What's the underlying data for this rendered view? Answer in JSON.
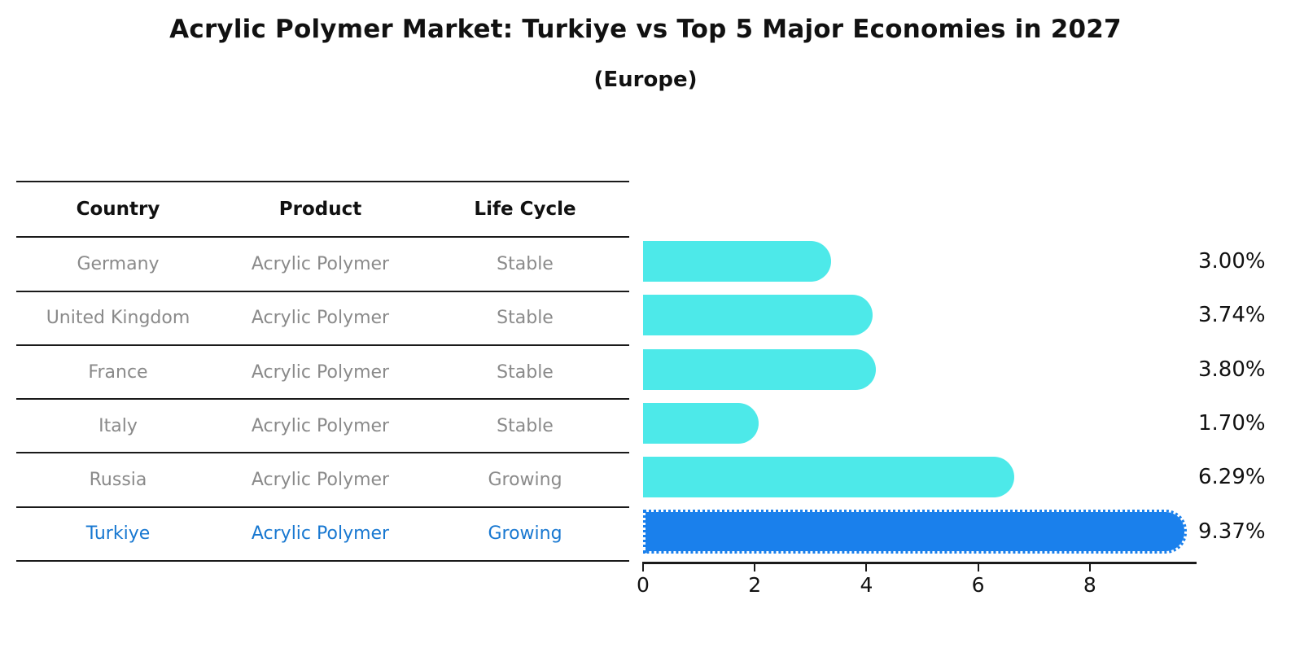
{
  "title": "Acrylic Polymer Market: Turkiye vs Top 5 Major Economies in 2027",
  "subtitle": "(Europe)",
  "table": {
    "headers": [
      "Country",
      "Product",
      "Life Cycle"
    ],
    "rows": [
      {
        "country": "Germany",
        "product": "Acrylic Polymer",
        "life_cycle": "Stable",
        "highlight": false
      },
      {
        "country": "United Kingdom",
        "product": "Acrylic Polymer",
        "life_cycle": "Stable",
        "highlight": false
      },
      {
        "country": "France",
        "product": "Acrylic Polymer",
        "life_cycle": "Stable",
        "highlight": false
      },
      {
        "country": "Italy",
        "product": "Acrylic Polymer",
        "life_cycle": "Stable",
        "highlight": false
      },
      {
        "country": "Russia",
        "product": "Acrylic Polymer",
        "life_cycle": "Growing",
        "highlight": false
      },
      {
        "country": "Turkiye",
        "product": "Acrylic Polymer",
        "life_cycle": "Growing",
        "highlight": true
      }
    ]
  },
  "chart_data": {
    "type": "bar",
    "orientation": "horizontal",
    "title": "Acrylic Polymer Market: Turkiye vs Top 5 Major Economies in 2027",
    "subtitle": "(Europe)",
    "categories": [
      "Germany",
      "United Kingdom",
      "France",
      "Italy",
      "Russia",
      "Turkiye"
    ],
    "values": [
      3.0,
      3.74,
      3.8,
      1.7,
      6.29,
      9.37
    ],
    "value_labels": [
      "3.00%",
      "3.74%",
      "3.80%",
      "1.70%",
      "6.29%",
      "9.37%"
    ],
    "x_ticks": [
      0,
      2,
      4,
      6,
      8
    ],
    "xlim": [
      0,
      9.9
    ],
    "grid": false,
    "legend": "none",
    "highlight_index": 5,
    "bar_color": "#4DE9E9",
    "highlight_bar_color": "#1A80EC",
    "highlight_text_color": "#1878d1",
    "row_text_color": "#8a8a8a",
    "axis_color": "#1a1a1a"
  }
}
